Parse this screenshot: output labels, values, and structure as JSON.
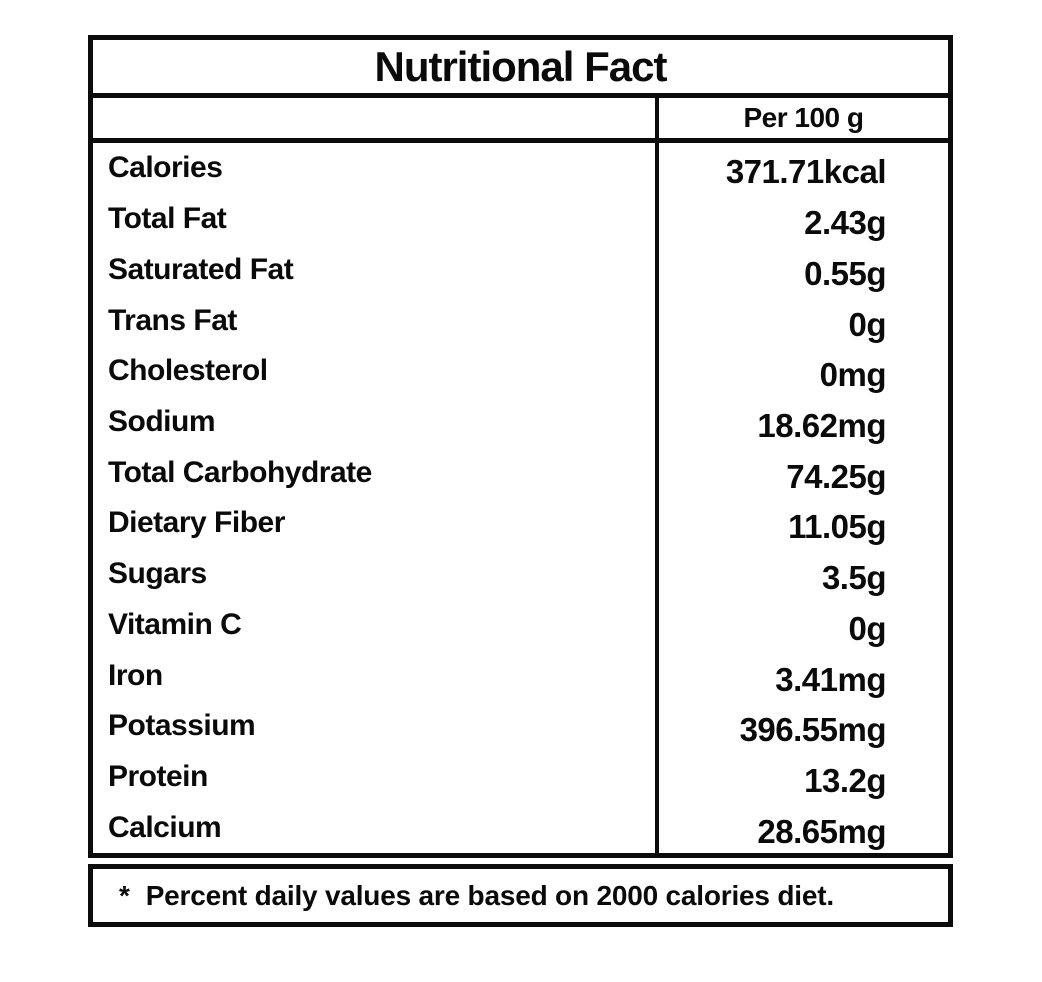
{
  "label": {
    "title": "Nutritional Fact",
    "column_header": "Per 100 g",
    "rows": [
      {
        "name": "Calories",
        "value": "371.71kcal"
      },
      {
        "name": "Total Fat",
        "value": "2.43g"
      },
      {
        "name": "Saturated Fat",
        "value": "0.55g"
      },
      {
        "name": "Trans Fat",
        "value": "0g"
      },
      {
        "name": "Cholesterol",
        "value": "0mg"
      },
      {
        "name": "Sodium",
        "value": "18.62mg"
      },
      {
        "name": "Total Carbohydrate",
        "value": "74.25g"
      },
      {
        "name": "Dietary Fiber",
        "value": "11.05g"
      },
      {
        "name": "Sugars",
        "value": "3.5g"
      },
      {
        "name": "Vitamin C",
        "value": "0g"
      },
      {
        "name": "Iron",
        "value": "3.41mg"
      },
      {
        "name": "Potassium",
        "value": "396.55mg"
      },
      {
        "name": "Protein",
        "value": "13.2g"
      },
      {
        "name": "Calcium",
        "value": "28.65mg"
      }
    ],
    "footnote_marker": "*",
    "footnote_text": "Percent daily values are based on 2000 calories diet."
  },
  "colors": {
    "border": "#0c0c0e",
    "text": "#0a0a0a",
    "background": "#ffffff"
  }
}
